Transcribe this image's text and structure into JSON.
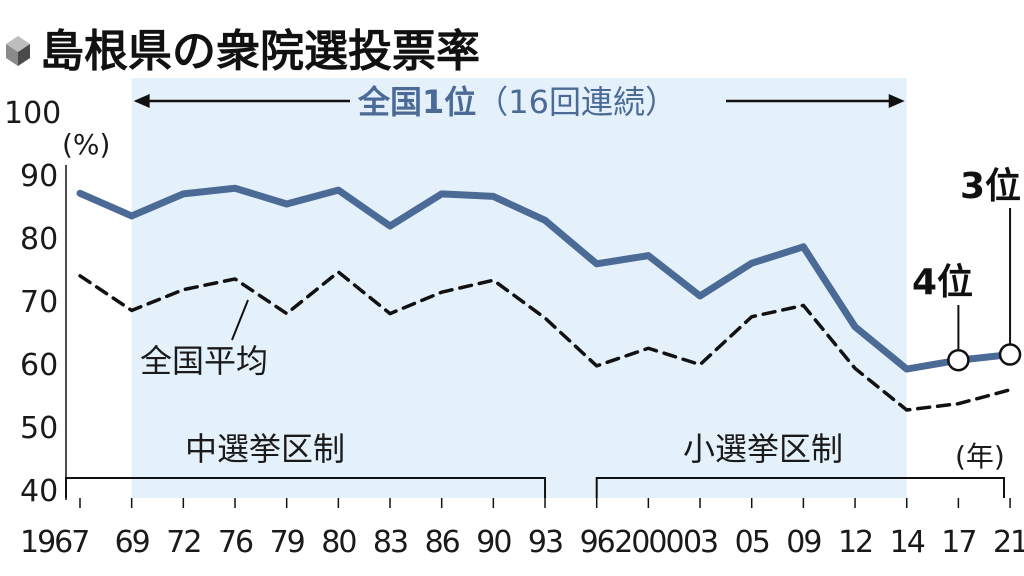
{
  "title": "島根県の衆院選投票率",
  "colors": {
    "shimane_line": "#4b6b96",
    "national_line": "#111111",
    "shade": "#e4f1fb",
    "banner_text": "#4b6b96"
  },
  "icon": "cube-icon",
  "annotations": {
    "rank_banner_main": "全国1位",
    "rank_banner_sub": "（16回連続）",
    "national_average_label": "全国平均",
    "system_old": "中選挙区制",
    "system_new": "小選挙区制",
    "rank_2017": "4位",
    "rank_2021": "3位"
  },
  "chart_data": {
    "type": "line",
    "title": "島根県の衆院選投票率",
    "ylabel": "(%)",
    "xlabel": "(年)",
    "ylim": [
      40,
      100
    ],
    "yticks": [
      "40",
      "50",
      "60",
      "70",
      "80",
      "90",
      "100"
    ],
    "x_labels": [
      "1967",
      "69",
      "72",
      "76",
      "79",
      "80",
      "83",
      "86",
      "90",
      "93",
      "96",
      "2000",
      "03",
      "05",
      "09",
      "12",
      "14",
      "17",
      "21"
    ],
    "x_years": [
      1967,
      1969,
      1972,
      1976,
      1979,
      1980,
      1983,
      1986,
      1990,
      1993,
      1996,
      2000,
      2003,
      2005,
      2009,
      2012,
      2014,
      2017,
      2021
    ],
    "series": [
      {
        "values": [
          87.1,
          83.5,
          87.0,
          87.9,
          85.4,
          87.6,
          81.9,
          87.0,
          86.6,
          82.8,
          75.9,
          77.2,
          70.8,
          76.0,
          78.6,
          65.9,
          59.2,
          60.6,
          61.5
        ],
        "style": "solid",
        "markers_at": [
          "17",
          "21"
        ]
      },
      {
        "name": "全国平均",
        "values": [
          74.0,
          68.5,
          71.8,
          73.5,
          68.0,
          74.6,
          68.0,
          71.4,
          73.3,
          67.3,
          59.7,
          62.5,
          59.9,
          67.5,
          69.3,
          59.3,
          52.7,
          53.7,
          55.9
        ],
        "style": "dashed"
      }
    ],
    "regions": [
      {
        "label": "中選挙区制",
        "from": "1967",
        "to": "93"
      },
      {
        "label": "小選挙区制",
        "from": "96",
        "to": "21"
      }
    ],
    "highlight": {
      "from": "69",
      "to": "14",
      "label": "全国1位（16回連続）"
    },
    "grid": false
  }
}
